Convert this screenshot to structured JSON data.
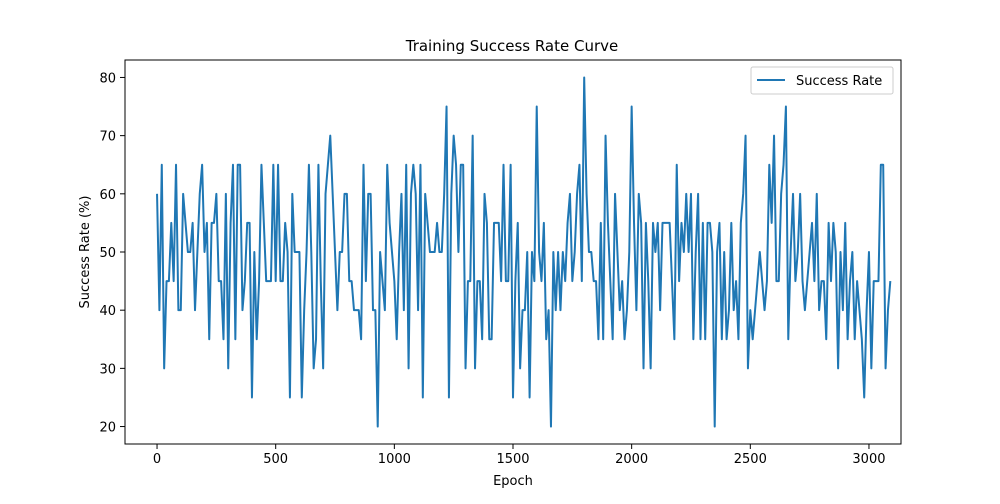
{
  "chart_data": {
    "type": "line",
    "title": "Training Success Rate Curve",
    "xlabel": "Epoch",
    "ylabel": "Success Rate (%)",
    "xlim": [
      -135,
      3135
    ],
    "ylim": [
      17,
      83
    ],
    "xticks": [
      0,
      500,
      1000,
      1500,
      2000,
      2500,
      3000
    ],
    "yticks": [
      20,
      30,
      40,
      50,
      60,
      70,
      80
    ],
    "grid": false,
    "legend_position": "top-right",
    "series": [
      {
        "name": "Success Rate",
        "color": "#1f77b4",
        "x_start": 0,
        "x_step": 10,
        "values": [
          60,
          40,
          65,
          30,
          45,
          45,
          55,
          45,
          65,
          40,
          40,
          60,
          55,
          50,
          50,
          55,
          40,
          50,
          60,
          65,
          50,
          55,
          35,
          55,
          55,
          60,
          45,
          45,
          35,
          60,
          30,
          55,
          65,
          35,
          65,
          65,
          40,
          45,
          55,
          55,
          25,
          50,
          35,
          45,
          65,
          55,
          45,
          45,
          45,
          65,
          45,
          65,
          45,
          45,
          55,
          50,
          25,
          60,
          50,
          50,
          50,
          25,
          40,
          50,
          65,
          50,
          30,
          35,
          65,
          45,
          30,
          60,
          65,
          70,
          60,
          50,
          40,
          50,
          50,
          60,
          60,
          45,
          45,
          40,
          40,
          40,
          35,
          65,
          45,
          60,
          60,
          40,
          40,
          20,
          50,
          45,
          40,
          65,
          55,
          50,
          45,
          35,
          50,
          60,
          40,
          65,
          30,
          60,
          65,
          60,
          40,
          65,
          25,
          60,
          55,
          50,
          50,
          50,
          55,
          50,
          50,
          60,
          75,
          25,
          60,
          70,
          65,
          50,
          65,
          65,
          30,
          45,
          45,
          70,
          30,
          45,
          45,
          35,
          60,
          55,
          35,
          35,
          55,
          55,
          55,
          45,
          65,
          45,
          45,
          65,
          25,
          45,
          55,
          30,
          40,
          40,
          50,
          25,
          50,
          45,
          75,
          50,
          45,
          55,
          35,
          40,
          20,
          50,
          40,
          50,
          40,
          50,
          45,
          55,
          60,
          45,
          50,
          60,
          65,
          45,
          80,
          60,
          50,
          50,
          45,
          45,
          35,
          55,
          35,
          70,
          55,
          45,
          35,
          60,
          50,
          40,
          45,
          35,
          40,
          50,
          75,
          55,
          40,
          60,
          55,
          30,
          55,
          45,
          30,
          55,
          50,
          55,
          40,
          55,
          55,
          55,
          55,
          45,
          35,
          65,
          45,
          55,
          50,
          60,
          50,
          60,
          35,
          50,
          60,
          35,
          55,
          35,
          55,
          55,
          50,
          20,
          50,
          55,
          35,
          50,
          35,
          40,
          55,
          40,
          45,
          35,
          55,
          60,
          70,
          30,
          40,
          35,
          40,
          45,
          50,
          45,
          40,
          45,
          65,
          55,
          70,
          45,
          45,
          60,
          65,
          75,
          35,
          50,
          60,
          45,
          50,
          60,
          45,
          40,
          45,
          50,
          55,
          45,
          60,
          40,
          45,
          45,
          35,
          55,
          45,
          55,
          50,
          30,
          50,
          40,
          55,
          35,
          45,
          50,
          35,
          45,
          40,
          35,
          25,
          40,
          50,
          30,
          45,
          45,
          45,
          65,
          65,
          30,
          40,
          45
        ]
      }
    ]
  }
}
